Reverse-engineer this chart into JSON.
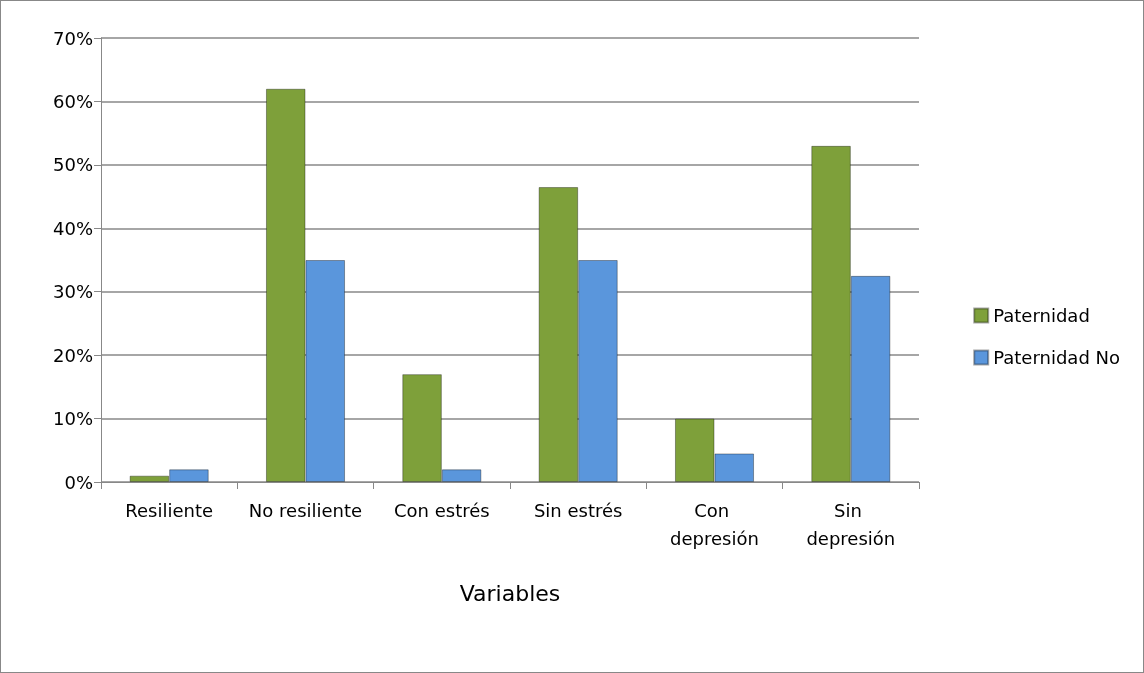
{
  "chart_data": {
    "type": "bar",
    "xlabel": "Variables",
    "categories": [
      "Resiliente",
      "No resiliente",
      "Con estrés",
      "Sin estrés",
      "Con depresión",
      "Sin depresión"
    ],
    "series": [
      {
        "name": "Paternidad",
        "color": "#7ea03a",
        "values": [
          1,
          62,
          17,
          46.5,
          10,
          53
        ]
      },
      {
        "name": "Paternidad No",
        "color": "#5a96dc",
        "values": [
          2,
          35,
          2,
          35,
          4.5,
          32.5
        ]
      }
    ],
    "ylim": [
      0,
      70
    ],
    "yticks": [
      {
        "value": 0,
        "label": "0%"
      },
      {
        "value": 10,
        "label": "10%"
      },
      {
        "value": 20,
        "label": "20%"
      },
      {
        "value": 30,
        "label": "30%"
      },
      {
        "value": 40,
        "label": "40%"
      },
      {
        "value": 50,
        "label": "50%"
      },
      {
        "value": 60,
        "label": "60%"
      },
      {
        "value": 70,
        "label": "70%"
      }
    ],
    "grid": "y",
    "legend": "right"
  }
}
